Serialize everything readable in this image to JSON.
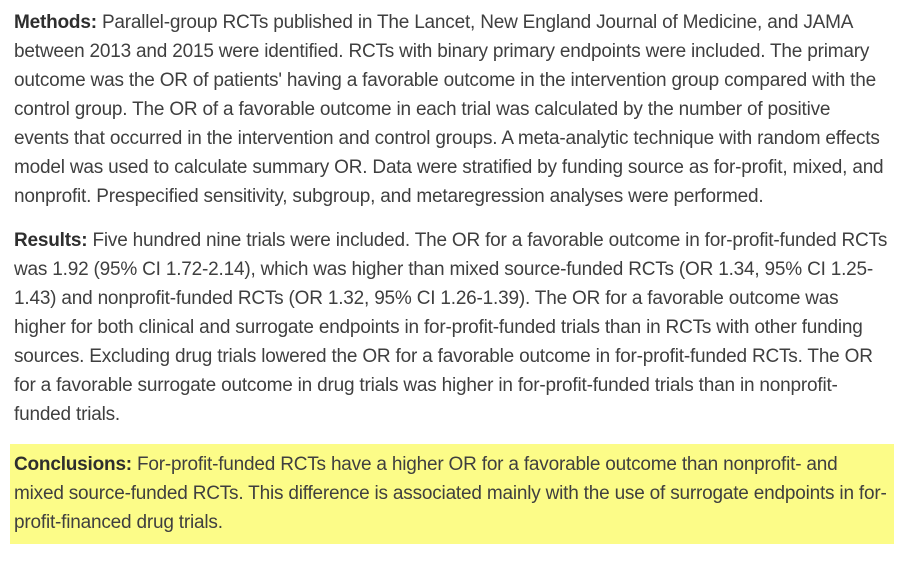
{
  "abstract": {
    "colors": {
      "background": "#ffffff",
      "text": "#3f3f3f",
      "label": "#2e2e2e",
      "highlight": "#fcfc88"
    },
    "paragraphs": [
      {
        "label": "Methods:",
        "text": "Parallel-group RCTs published in The Lancet, New England Journal of Medicine, and JAMA between 2013 and 2015 were identified. RCTs with binary primary endpoints were included. The primary outcome was the OR of patients' having a favorable outcome in the intervention group compared with the control group. The OR of a favorable outcome in each trial was calculated by the number of positive events that occurred in the intervention and control groups. A meta-analytic technique with random effects model was used to calculate summary OR. Data were stratified by funding source as for-profit, mixed, and nonprofit. Prespecified sensitivity, subgroup, and metaregression analyses were performed.",
        "highlighted": false
      },
      {
        "label": "Results:",
        "text": "Five hundred nine trials were included. The OR for a favorable outcome in for-profit-funded RCTs was 1.92 (95% CI 1.72-2.14), which was higher than mixed source-funded RCTs (OR 1.34, 95% CI 1.25-1.43) and nonprofit-funded RCTs (OR 1.32, 95% CI 1.26-1.39). The OR for a favorable outcome was higher for both clinical and surrogate endpoints in for-profit-funded trials than in RCTs with other funding sources. Excluding drug trials lowered the OR for a favorable outcome in for-profit-funded RCTs. The OR for a favorable surrogate outcome in drug trials was higher in for-profit-funded trials than in nonprofit-funded trials.",
        "highlighted": false
      },
      {
        "label": "Conclusions:",
        "text": "For-profit-funded RCTs have a higher OR for a favorable outcome than nonprofit- and mixed source-funded RCTs. This difference is associated mainly with the use of surrogate endpoints in for-profit-financed drug trials.",
        "highlighted": true
      }
    ]
  }
}
